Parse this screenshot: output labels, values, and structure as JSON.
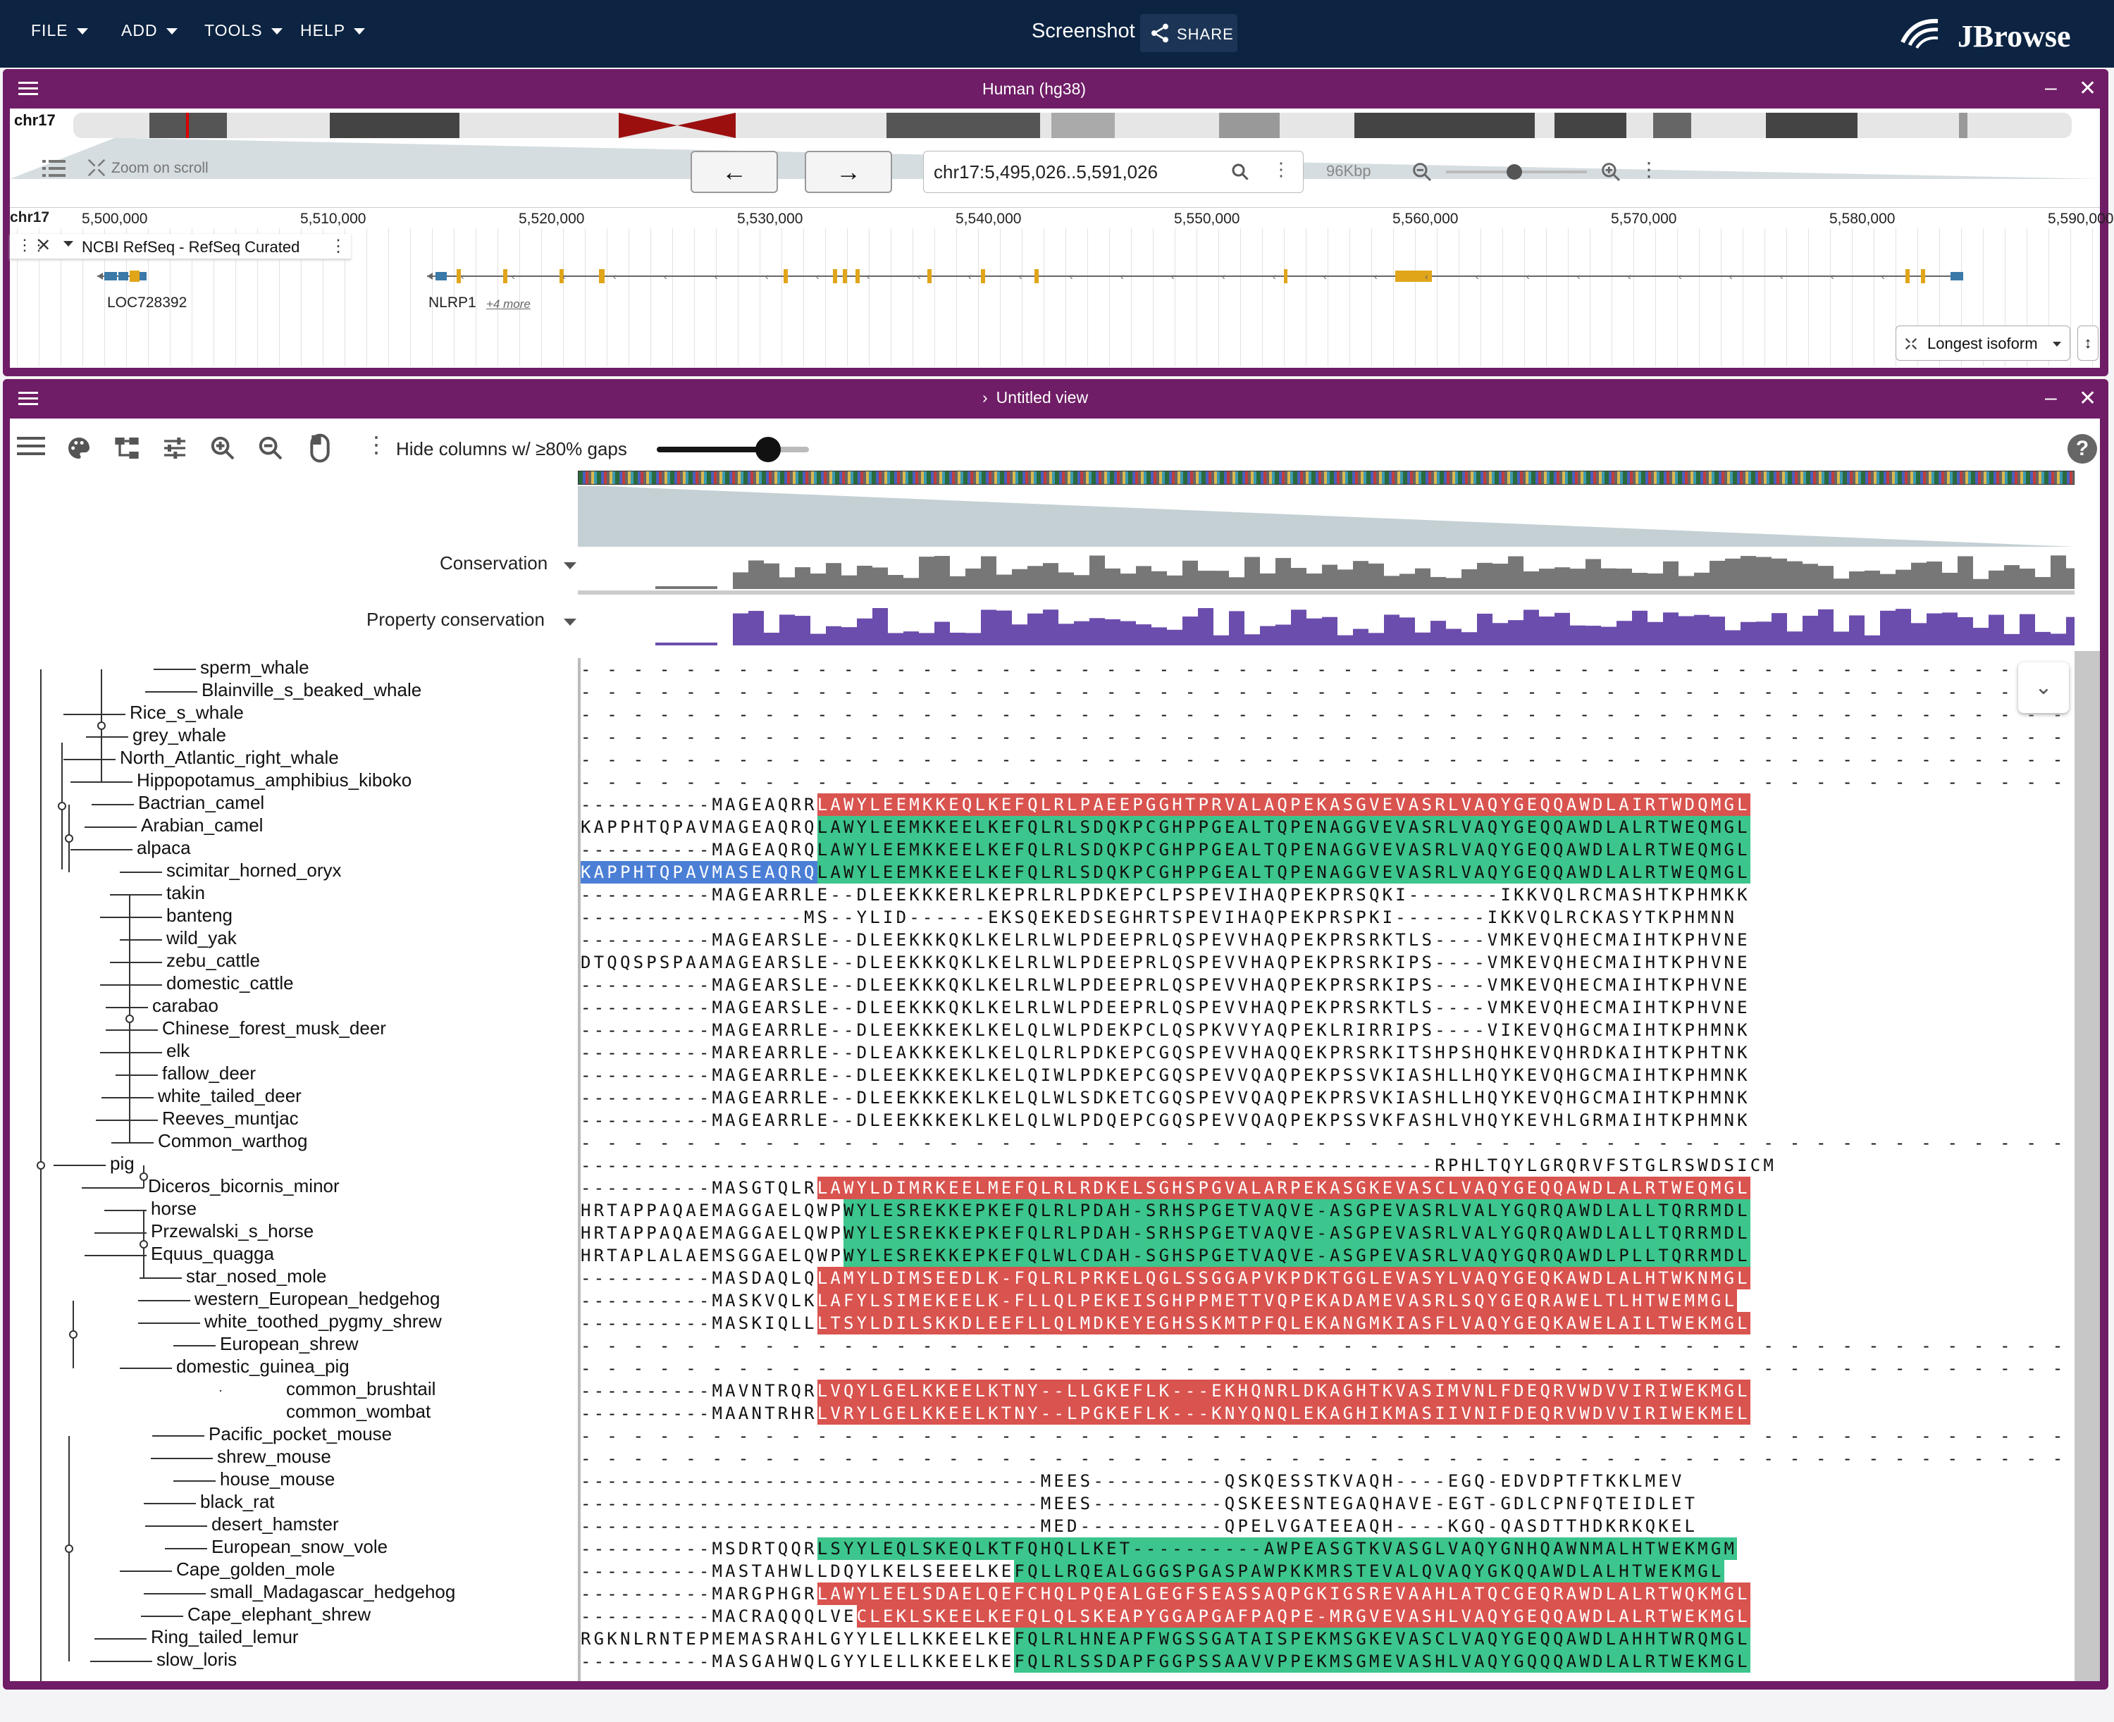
{
  "topbar": {
    "menus": [
      "FILE",
      "ADD",
      "TOOLS",
      "HELP"
    ],
    "session_name": "Screenshot",
    "share_label": "SHARE",
    "logo_text": "JBrowse"
  },
  "linear_view": {
    "title": "Human (hg38)",
    "chromosome": "chr17",
    "zoom_on_scroll_label": "Zoom on scroll",
    "locstring": "chr17:5,495,026..5,591,026",
    "span_label": "96Kbp",
    "ruler_chrom": "chr17",
    "ruler_labels": [
      "5,500,000",
      "5,510,000",
      "5,520,000",
      "5,530,000",
      "5,540,000",
      "5,550,000",
      "5,560,000",
      "5,570,000",
      "5,580,000",
      "5,590,000"
    ],
    "track_name": "NCBI RefSeq - RefSeq Curated",
    "genes": [
      {
        "name": "LOC728392"
      },
      {
        "name": "NLRP1",
        "more": "+4 more"
      }
    ],
    "isoform_button": "Longest isoform"
  },
  "msa_view": {
    "title": "Untitled view",
    "hide_columns_label": "Hide columns w/ ≥80% gaps",
    "slider_value": 0.8,
    "conservation_label": "Conservation",
    "property_conservation_label": "Property conservation",
    "colors": {
      "red": "#d9534f",
      "green": "#3cc58c",
      "blue": "#4b7fd6",
      "grey_bar": "#777777",
      "purple_bar": "#6b4dad"
    },
    "rows": [
      {
        "name": "sperm_whale",
        "seq": "- - - - - - - - - - - - - - - - - - - - - - - - - - - - - - - - - - - - - - - - - - - - - - - - - - - - - - - - - - - - - - - - - - - - - - - - - - - - - - - - - - -"
      },
      {
        "name": "Blainville_s_beaked_whale",
        "seq": "- - - - - - - - - - - - - - - - - - - - - - - - - - - - - - - - - - - - - - - - - - - - - - - - - - - - - - - - - - - - - - - - - - - - - - - - - - - - - - - - - - -"
      },
      {
        "name": "Rice_s_whale",
        "seq": "- - - - - - - - - - - - - - - - - - - - - - - - - - - - - - - - - - - - - - - - - - - - - - - - - - - - - - - - - - - - - - - - - - - - - - - - - - - - - - - - - - -"
      },
      {
        "name": "grey_whale",
        "seq": "- - - - - - - - - - - - - - - - - - - - - - - - - - - - - - - - - - - - - - - - - - - - - - - - - - - - - - - - - - - - - - - - - - - - - - - - - - - - - - - - - - -"
      },
      {
        "name": "North_Atlantic_right_whale",
        "seq": "- - - - - - - - - - - - - - - - - - - - - - - - - - - - - - - - - - - - - - - - - - - - - - - - - - - - - - - - - - - - - - - - - - - - - - - - - - - - - - - - - - -"
      },
      {
        "name": "Hippopotamus_amphibius_kiboko",
        "seq": "- - - - - - - - - - - - - - - - - - - - - - - - - - - - - - - - - - - - - - - - - - - - - - - - - - - - - - - - - - - - - - - - - - - - - - - - - - - - - - - - - - -"
      },
      {
        "name": "Bactrian_camel",
        "pre": "----------MAGEAQRR",
        "hl": "LAWYLEEMKKEQLKEFQLRLPAEEPGGHTPRVALAQPEKASGVEVASRLVAQYGEQQAWDLAIRTWDQMGL",
        "hlc": "red"
      },
      {
        "name": "Arabian_camel",
        "pre": "KAPPHTQPAVMAGEAQRQ",
        "hl": "LAWYLEEMKKEELKEFQLRLSDQKPCGHPPGEALTQPENAGGVEVASRLVAQYGEQQAWDLALRTWEQMGL",
        "hlc": "green"
      },
      {
        "name": "alpaca",
        "pre": "----------MAGEAQRQ",
        "hl": "LAWYLEEMKKEELKEFQLRLSDQKPCGHPPGEALTQPENAGGVEVASRLVAQYGEQQAWDLALRTWEQMGL",
        "hlc": "green"
      },
      {
        "name": "scimitar_horned_oryx",
        "pre": "KAPPHTQPAVMASEAQRQ",
        "prec": "blue",
        "hl": "LAWYLEEMKKEELKEFQLRLSDQKPCGHPPGEALTQPENAGGVEVASRLVAQYGEQQAWDLALRTWEQMGL",
        "hlc": "green"
      },
      {
        "name": "takin",
        "seq": "----------MAGEARRLE--DLEEKKKERLKEPRLRLPDKEPCLPSPEVIHAQPEKPRSQKI-------IKKVQLRCMASHTKPHMKK"
      },
      {
        "name": "banteng",
        "seq": "-----------------MS--YLID------EKSQEKEDSEGHRTSPEVIHAQPEKPRSPKI-------IKKVQLRCKASYTKPHMNN"
      },
      {
        "name": "wild_yak",
        "seq": "----------MAGEARSLE--DLEEKKKQKLKELRLWLPDEEPRLQSPEVVHAQPEKPRSRKTLS----VMKEVQHECMAIHTKPHVNE"
      },
      {
        "name": "zebu_cattle",
        "seq": "DTQQSPSPAAMAGEARSLE--DLEEKKKQKLKELRLWLPDEEPRLQSPEVVHAQPEKPRSRKIPS----VMKEVQHECMAIHTKPHVNE"
      },
      {
        "name": "domestic_cattle",
        "seq": "----------MAGEARSLE--DLEEKKKQKLKELRLWLPDEEPRLQSPEVVHAQPEKPRSRKIPS----VMKEVQHECMAIHTKPHVNE"
      },
      {
        "name": "carabao",
        "seq": "----------MAGEARSLE--DLEEKKKQKLKELRLWLPDEEPRLQSPEVVHAQPEKPRSRKTLS----VMKEVQHECMAIHTKPHVNE"
      },
      {
        "name": "Chinese_forest_musk_deer",
        "seq": "----------MAGEARRLE--DLEEKKKEKLKELQLWLPDEKPCLQSPKVVYAQPEKLRIRRIPS----VIKEVQHGCMAIHTKPHMNK"
      },
      {
        "name": "elk",
        "seq": "----------MAREARRLE--DLEAKKKEKLKELQLRLPDKEPCGQSPEVVHAQQEKPRSRKITSHPSHQHKEVQHRDKAIHTKPHTNK"
      },
      {
        "name": "fallow_deer",
        "seq": "----------MAGEARRLE--DLEEKKKEKLKELQIWLPDKEPCGQSPEVVQAQPEKPSSVKIASHLLHQYKEVQHGCMAIHTKPHMNK"
      },
      {
        "name": "white_tailed_deer",
        "seq": "----------MAGEARRLE--DLEEKKKEKLKELQLWLSDKETCGQSPEVVQAQPEKPRSVKIASHLLHQYKEVQHGCMAIHTKPHMNK"
      },
      {
        "name": "Reeves_muntjac",
        "seq": "----------MAGEARRLE--DLEEKKKEKLKELQLWLPDQEPCGQSPEVVQAQPEKPSSVKFASHLVHQYKEVHLGRMAIHTKPHMNK"
      },
      {
        "name": "Common_warthog",
        "seq": "- - - - - - - - - - - - - - - - - - - - - - - - - - - - - - - - - - - - - - - - - - - - - - - - - - - - - - - - - - - - - - - - - - - - - - - - - - - - - - - - - - -"
      },
      {
        "name": "pig",
        "seq": "-----------------------------------------------------------------RPHLTQYLGRQRVFSTGLRSWDSICM"
      },
      {
        "name": "Diceros_bicornis_minor",
        "pre": "----------MASGTQLR",
        "hl": "LAWYLDIMRKEELMEFQLRLRDKELSGHSPGVALARPEKASGKEVASCLVAQYGEQQAWDLALRTWEQMGL",
        "hlc": "red"
      },
      {
        "name": "horse",
        "pre": "HRTAPPAQAEMAGGAELQWP",
        "hl": "WYLESREKKEPKEFQLRLPDAH-SRHSPGETVAQVE-ASGPEVASRLVALYGQRQAWDLALLTQRRMDL",
        "hlc": "green"
      },
      {
        "name": "Przewalski_s_horse",
        "pre": "HRTAPPAQAEMAGGAELQWP",
        "hl": "WYLESREKKEPKEFQLRLPDAH-SRHSPGETVAQVE-ASGPEVASRLVALYGQRQAWDLALLTQRRMDL",
        "hlc": "green"
      },
      {
        "name": "Equus_quagga",
        "pre": "HRTAPLALAEMSGGAELQWP",
        "hl": "WYLESREKKEPKEFQLWLCDAH-SGHSPGETVAQVE-ASGPEVASRLVAQYGQRQAWDLPLLTQRRMDL",
        "hlc": "green"
      },
      {
        "name": "star_nosed_mole",
        "pre": "----------MASDAQLQ",
        "hl": "LAMYLDIMSEEDLK-FQLRLPRKELQGLSSGGAPVKPDKTGGLEVASYLVAQYGEQKAWDLALHTWKNMGL",
        "hlc": "red"
      },
      {
        "name": "western_European_hedgehog",
        "pre": "----------MASKVQLK",
        "hl": "LAFYLSIMEKEELK-FLLQLPEKEISGHPPMETTVQPEKADAMEVASRLSQYGEQRAWELTLHTWEMMGL",
        "hlc": "red"
      },
      {
        "name": "white_toothed_pygmy_shrew",
        "pre": "----------MASKIQLL",
        "hl": "LTSYLDILSKKDLEEFLLQLMDKEYEGHSSKMTPFQLEKANGMKIASFLVAQYGEQKAWELAILTWEKMGL",
        "hlc": "red"
      },
      {
        "name": "European_shrew",
        "seq": "- - - - - - - - - - - - - - - - - - - - - - - - - - - - - - - - - - - - - - - - - - - - - - - - - - - - - - - - - - - - - - - - - - - - - - - - - - - - - - - - - - -"
      },
      {
        "name": "domestic_guinea_pig",
        "seq": "- - - - - - - - - - - - - - - - - - - - - - - - - - - - - - - - - - - - - - - - - - - - - - - - - - - - - - - - - - - - - - - - - - - - - - - - - - - - - - - - - - -"
      },
      {
        "name": "common_brushtail",
        "pre": "----------MAVNTRQR",
        "hl": "LVQYLGELKKEELKTNY--LLGKEFLK---EKHQNRLDKAGHTKVASIMVNLFDEQRVWDVVIRIWEKMGL",
        "hlc": "red"
      },
      {
        "name": "common_wombat",
        "pre": "----------MAANTRHR",
        "hl": "LVRYLGELKKEELKTNY--LPGKEFLK---KNYQNQLEKAGHIKMASIIVNIFDEQRVWDVVIRIWEKMEL",
        "hlc": "red"
      },
      {
        "name": "Pacific_pocket_mouse",
        "seq": "- - - - - - - - - - - - - - - - - - - - - - - - - - - - - - - - - - - - - - - - - - - - - - - - - - - - - - - - - - - - - - - - - - - - - - - - - - - - - - - - - - -"
      },
      {
        "name": "shrew_mouse",
        "seq": "- - - - - - - - - - - - - - - - - - - - - - - - - - - - - - - - - - - - - - - - - - - - - - - - - - - - - - - - - - - - - - - - - - - - - - - - - - - - - - - - - - -"
      },
      {
        "name": "house_mouse",
        "seq": "-----------------------------------MEES----------QSKQESSTKVAQH----EGQ-EDVDPTFTKKLMEV"
      },
      {
        "name": "black_rat",
        "seq": "-----------------------------------MEES----------QSKEESNTEGAQHAVE-EGT-GDLCPNFQTEIDLET"
      },
      {
        "name": "desert_hamster",
        "seq": "-----------------------------------MED-----------QPELVGATEEAQH----KGQ-QASDTTHDKRKQKEL"
      },
      {
        "name": "European_snow_vole",
        "pre": "----------MSDRTQQR",
        "hl": "LSYYLEQLSKEQLKTFQHQLLKET----------AWPEASGTKVASGLVAQYGNHQAWNMALHTWEKMGM",
        "hlc": "green"
      },
      {
        "name": "Cape_golden_mole",
        "pre": "----------MASTAHWLLDQYLKELSEEELKE",
        "hl": "FQLLRQEALGGGSPGASPAWPKKMRSTEVALQVAQYGKQQAWDLALHTWEKMGL",
        "hlc": "green"
      },
      {
        "name": "small_Madagascar_hedgehog",
        "pre": "----------MARGPHGR",
        "hl": "LAWYLEELSDAELQEFCHQLPQEALGEGFSEASSAQPGKIGSREVAAHLATQCGEQRAWDLALRTWQKMGL",
        "hlc": "red"
      },
      {
        "name": "Cape_elephant_shrew",
        "pre": "----------MACRAQQQLVE",
        "hl": "CLEKLSKEELKEFQLQLSKEAPYGGAPGAFPAQPE-MRGVEVASHLVAQYGEQQAWDLALRTWEKMGL",
        "hlc": "red"
      },
      {
        "name": "Ring_tailed_lemur",
        "pre": "RGKNLRNTEPMEMASRAHLGYYLELLKKEELKE",
        "hl": "FQLRLHNEAPFWGSSGATAISPEKMSGKEVASCLVAQYGEQQAWDLAHHTWRQMGL",
        "hlc": "green"
      },
      {
        "name": "slow_loris",
        "pre": "----------MASGAHWQLGYYLELLKKEELKE",
        "hl": "FQLRLSSDAPFGGPSSAAVVPPEKMSGMEVASHLVAQYGQQQAWDLALRTWEKMGL",
        "hlc": "green"
      }
    ]
  }
}
